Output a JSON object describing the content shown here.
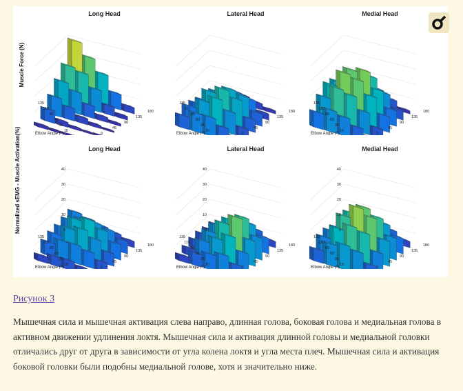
{
  "figure": {
    "panels": [
      {
        "title": "Long Head",
        "row": 0,
        "col": 0
      },
      {
        "title": "Lateral Head",
        "row": 0,
        "col": 1
      },
      {
        "title": "Medial Head",
        "row": 0,
        "col": 2
      },
      {
        "title": "Long Head",
        "row": 1,
        "col": 0
      },
      {
        "title": "Lateral Head",
        "row": 1,
        "col": 1
      },
      {
        "title": "Medial Head",
        "row": 1,
        "col": 2
      }
    ],
    "row_labels": [
      "Muscle Force (N)",
      "Normalized sEMG - Muscle Activation(%)"
    ],
    "elbow_axis_label": "Elbow Angle (°)",
    "shoulder_axis_label": "Shoulder Elevation (°)",
    "elbow_ticks": [
      "135",
      "110",
      "85",
      "60",
      "35",
      "10"
    ],
    "shoulder_ticks": [
      "0",
      "45",
      "90",
      "135",
      "180"
    ],
    "emg_z_ticks": [
      "0",
      "10",
      "20",
      "30",
      "40"
    ],
    "logo_icon": "female-symbol-icon"
  },
  "caption": {
    "link_text": "Рисунок 3",
    "text": "Мышечная сила и мышечная активация слева направо, длинная голова, боковая голова и медиальная голова в активном движении удлинения локтя. Мышечная сила и активация длинной головы и медиальной головки отличались друг от друга в зависимости от угла колена локтя и угла места плеч. Мышечная сила и активация боковой головки были подобны медиальной голове, хотя и значительно ниже."
  },
  "colors": {
    "page_bg": "#fdf8e4",
    "link": "#5b3fa8",
    "text": "#333333"
  }
}
